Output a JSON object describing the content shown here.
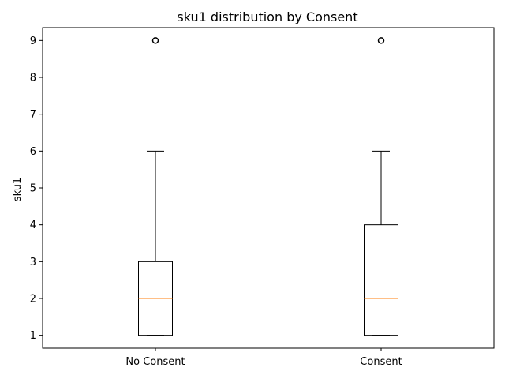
{
  "chart_data": {
    "type": "box",
    "title": "sku1 distribution by Consent",
    "xlabel": "",
    "ylabel": "sku1",
    "ylim": [
      0.65,
      9.35
    ],
    "yticks": [
      1,
      2,
      3,
      4,
      5,
      6,
      7,
      8,
      9
    ],
    "grid": false,
    "categories": [
      "No Consent",
      "Consent"
    ],
    "boxes": [
      {
        "category": "No Consent",
        "whisker_low": 1,
        "q1": 1,
        "median": 2,
        "q3": 3,
        "whisker_high": 6,
        "outliers": [
          9
        ]
      },
      {
        "category": "Consent",
        "whisker_low": 1,
        "q1": 1,
        "median": 2,
        "q3": 4,
        "whisker_high": 6,
        "outliers": [
          9
        ]
      }
    ],
    "colors": {
      "box": "#000000",
      "median": "#ff7f0e",
      "outlier": "#000000"
    }
  }
}
